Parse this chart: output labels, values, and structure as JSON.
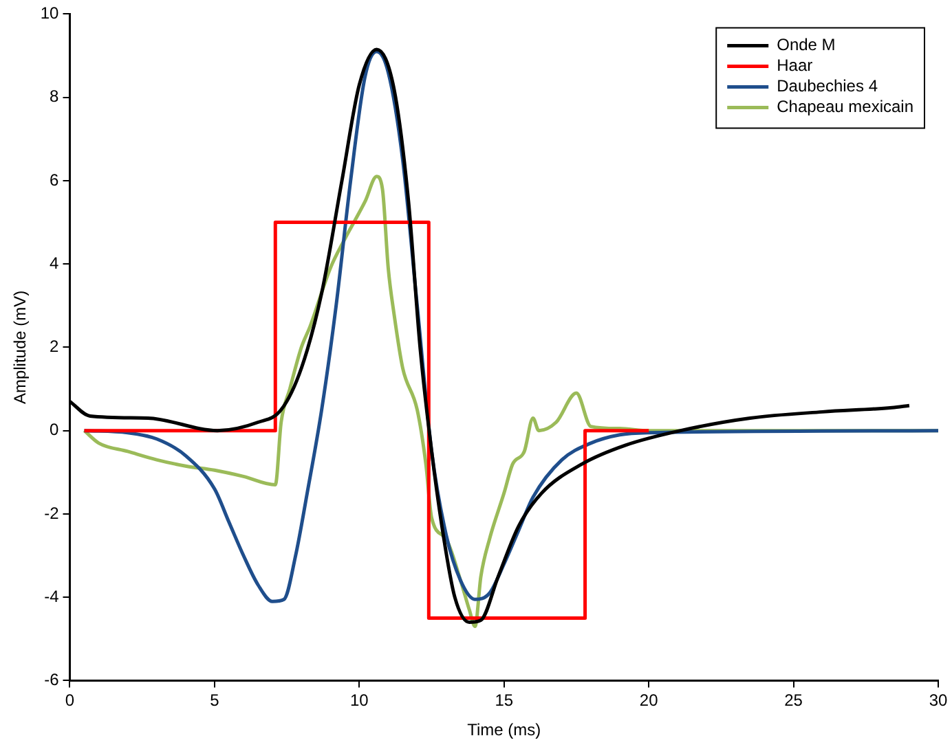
{
  "chart_data": {
    "type": "line",
    "xlabel": "Time (ms)",
    "ylabel": "Amplitude (mV)",
    "xlim": [
      0,
      30
    ],
    "xticks": [
      0,
      5,
      10,
      15,
      20,
      25,
      30
    ],
    "ylim": [
      -6,
      10
    ],
    "yticks": [
      -6,
      -4,
      -2,
      0,
      2,
      4,
      6,
      8,
      10
    ],
    "grid": false,
    "legend": "top right",
    "marker": "none",
    "line_style": "solid",
    "series": [
      {
        "name": "Onde M",
        "color": "#000000",
        "x": [
          0,
          0.7,
          2.7,
          5.1,
          6.5,
          7.3,
          8,
          8.7,
          9.4,
          10,
          10.6,
          11.2,
          11.7,
          12.1,
          12.5,
          12.9,
          13.3,
          13.8,
          14.2,
          14.8,
          15.5,
          16.3,
          17.7,
          19.2,
          21.1,
          23.5,
          26,
          28.4,
          29
        ],
        "values": [
          0.7,
          0.35,
          0.3,
          0,
          0.2,
          0.5,
          1.5,
          3.3,
          6,
          8.3,
          9.15,
          8.2,
          5.5,
          2,
          -0.5,
          -2.5,
          -4,
          -4.6,
          -4.55,
          -3.5,
          -2.3,
          -1.5,
          -0.8,
          -0.35,
          0,
          0.3,
          0.45,
          0.55,
          0.6
        ]
      },
      {
        "name": "Haar",
        "color": "#ff0000",
        "type": "step",
        "x": [
          0.5,
          7.1,
          7.1,
          12.4,
          12.4,
          17.8,
          17.8,
          20
        ],
        "values": [
          0,
          0,
          5,
          5,
          -4.5,
          -4.5,
          0,
          0
        ]
      },
      {
        "name": "Daubechies 4",
        "color": "#1f4e8c",
        "x": [
          0.5,
          2,
          3,
          4,
          5,
          5.5,
          6,
          6.5,
          7,
          7.4,
          7.8,
          8.2,
          8.7,
          9.2,
          9.7,
          10.2,
          10.6,
          11,
          11.5,
          12,
          12.5,
          13,
          13.5,
          14,
          14.5,
          15,
          15.5,
          16,
          17,
          18,
          19,
          20,
          30
        ],
        "values": [
          0,
          -0.05,
          -0.2,
          -0.6,
          -1.4,
          -2.2,
          -3,
          -3.7,
          -4.1,
          -4.05,
          -3,
          -1.5,
          0.5,
          3,
          6,
          8.5,
          9.1,
          8.6,
          6.5,
          3,
          -0.5,
          -2.5,
          -3.6,
          -4.05,
          -3.9,
          -3.2,
          -2.4,
          -1.6,
          -0.7,
          -0.3,
          -0.1,
          -0.05,
          0
        ]
      },
      {
        "name": "Chapeau mexicain",
        "color": "#9bbb59",
        "x": [
          0.5,
          1,
          2,
          3,
          4,
          5,
          6,
          7.1,
          7.3,
          7.6,
          8,
          8.3,
          9,
          9.5,
          10.2,
          10.6,
          10.8,
          11,
          11.2,
          11.5,
          12,
          12.3,
          12.5,
          13,
          13.5,
          13.8,
          14,
          14.2,
          14.5,
          15,
          15.3,
          15.7,
          16,
          16.2,
          16.8,
          17.5,
          18,
          19,
          20,
          30
        ],
        "values": [
          0,
          -0.3,
          -0.5,
          -0.7,
          -0.85,
          -0.95,
          -1.1,
          -1.3,
          0.2,
          1,
          2,
          2.5,
          3.9,
          4.6,
          5.5,
          6.1,
          5.8,
          3.9,
          2.8,
          1.5,
          0.5,
          -0.8,
          -2.1,
          -2.6,
          -3.6,
          -4.3,
          -4.7,
          -3.5,
          -2.6,
          -1.5,
          -0.8,
          -0.5,
          0.3,
          0,
          0.2,
          0.9,
          0.1,
          0.05,
          0,
          0
        ]
      }
    ]
  }
}
